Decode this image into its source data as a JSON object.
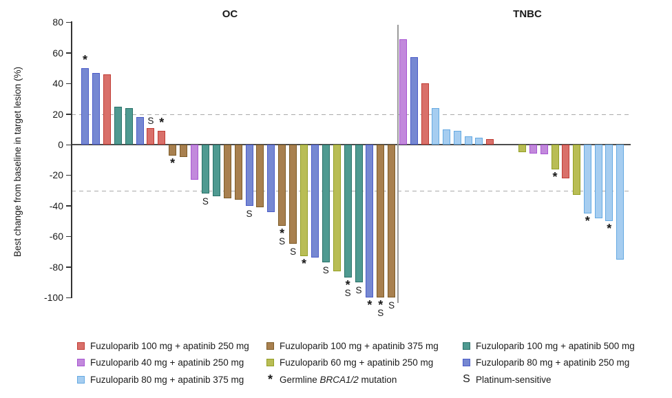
{
  "chart_data": {
    "type": "bar",
    "subtype": "waterfall",
    "ylabel": "Best change from baseline in target lesion (%)",
    "ylim": [
      -100,
      80
    ],
    "yticks": [
      80,
      60,
      40,
      20,
      0,
      -20,
      -40,
      -60,
      -80,
      -100
    ],
    "reference_lines_y": [
      20,
      -30
    ],
    "grid": "off",
    "series_colors": {
      "red": {
        "label": "Fuzuloparib 100 mg + apatinib 250 mg",
        "fill": "#D9706A",
        "stroke": "#C03C34"
      },
      "brown": {
        "label": "Fuzuloparib 100 mg + apatinib 375 mg",
        "fill": "#A8804F",
        "stroke": "#7D5B27"
      },
      "teal": {
        "label": "Fuzuloparib 100 mg + apatinib 500 mg",
        "fill": "#4F9A91",
        "stroke": "#2A7168"
      },
      "orchid": {
        "label": "Fuzuloparib 40 mg + apatinib 250 mg",
        "fill": "#C289DC",
        "stroke": "#A755D2"
      },
      "olive": {
        "label": "Fuzuloparib 60 mg + apatinib 250 mg",
        "fill": "#B9BD55",
        "stroke": "#939F25"
      },
      "slate": {
        "label": "Fuzuloparib 80 mg + apatinib 250 mg",
        "fill": "#7688D2",
        "stroke": "#4A5BC8"
      },
      "sky": {
        "label": "Fuzuloparib 80 mg + apatinib 375 mg",
        "fill": "#A6CDF0",
        "stroke": "#64A9E2"
      }
    },
    "flags_legend": {
      "asterisk": {
        "symbol": "*",
        "label_prefix": "Germline ",
        "label_italic": "BRCA1/2",
        "label_suffix": " mutation"
      },
      "s": {
        "symbol": "S",
        "label": "Platinum-sensitive"
      }
    },
    "panels": [
      {
        "title": "OC",
        "slots": 29,
        "bars": [
          {
            "slot": 0,
            "value": 50,
            "series": "slate",
            "flag": "*"
          },
          {
            "slot": 1,
            "value": 47,
            "series": "slate",
            "flag": ""
          },
          {
            "slot": 2,
            "value": 46,
            "series": "red",
            "flag": ""
          },
          {
            "slot": 3,
            "value": 25,
            "series": "teal",
            "flag": ""
          },
          {
            "slot": 4,
            "value": 24,
            "series": "teal",
            "flag": ""
          },
          {
            "slot": 5,
            "value": 18,
            "series": "slate",
            "flag": ""
          },
          {
            "slot": 6,
            "value": 11,
            "series": "red",
            "flag": "S"
          },
          {
            "slot": 7,
            "value": 9,
            "series": "red",
            "flag": "*"
          },
          {
            "slot": 8,
            "value": -7,
            "series": "brown",
            "flag": "*"
          },
          {
            "slot": 9,
            "value": -8,
            "series": "brown",
            "flag": ""
          },
          {
            "slot": 10,
            "value": -23,
            "series": "orchid",
            "flag": ""
          },
          {
            "slot": 11,
            "value": -32,
            "series": "teal",
            "flag": "S"
          },
          {
            "slot": 12,
            "value": -34,
            "series": "teal",
            "flag": ""
          },
          {
            "slot": 13,
            "value": -35,
            "series": "brown",
            "flag": ""
          },
          {
            "slot": 14,
            "value": -36,
            "series": "brown",
            "flag": ""
          },
          {
            "slot": 15,
            "value": -40,
            "series": "slate",
            "flag": "S"
          },
          {
            "slot": 16,
            "value": -41,
            "series": "brown",
            "flag": ""
          },
          {
            "slot": 17,
            "value": -44,
            "series": "slate",
            "flag": ""
          },
          {
            "slot": 18,
            "value": -53,
            "series": "brown",
            "flag": "*S"
          },
          {
            "slot": 19,
            "value": -65,
            "series": "brown",
            "flag": "S"
          },
          {
            "slot": 20,
            "value": -73,
            "series": "olive",
            "flag": "*"
          },
          {
            "slot": 21,
            "value": -74,
            "series": "slate",
            "flag": ""
          },
          {
            "slot": 22,
            "value": -77,
            "series": "teal",
            "flag": "S"
          },
          {
            "slot": 23,
            "value": -83,
            "series": "olive",
            "flag": ""
          },
          {
            "slot": 24,
            "value": -87,
            "series": "teal",
            "flag": "*S"
          },
          {
            "slot": 25,
            "value": -90,
            "series": "teal",
            "flag": "S"
          },
          {
            "slot": 26,
            "value": -100,
            "series": "slate",
            "flag": "*"
          },
          {
            "slot": 27,
            "value": -100,
            "series": "brown",
            "flag": "*S"
          },
          {
            "slot": 28,
            "value": -100,
            "series": "brown",
            "flag": "S"
          }
        ]
      },
      {
        "title": "TNBC",
        "slots": 21,
        "bars": [
          {
            "slot": 0,
            "value": 69,
            "series": "orchid",
            "flag": ""
          },
          {
            "slot": 1,
            "value": 57,
            "series": "slate",
            "flag": ""
          },
          {
            "slot": 2,
            "value": 40,
            "series": "red",
            "flag": ""
          },
          {
            "slot": 3,
            "value": 24,
            "series": "sky",
            "flag": ""
          },
          {
            "slot": 4,
            "value": 10,
            "series": "sky",
            "flag": ""
          },
          {
            "slot": 5,
            "value": 9,
            "series": "sky",
            "flag": ""
          },
          {
            "slot": 6,
            "value": 5.5,
            "series": "sky",
            "flag": ""
          },
          {
            "slot": 7,
            "value": 4.5,
            "series": "sky",
            "flag": ""
          },
          {
            "slot": 8,
            "value": 3.5,
            "series": "red",
            "flag": ""
          },
          {
            "slot": 11,
            "value": -5,
            "series": "olive",
            "flag": ""
          },
          {
            "slot": 12,
            "value": -6,
            "series": "orchid",
            "flag": ""
          },
          {
            "slot": 13,
            "value": -6.5,
            "series": "orchid",
            "flag": ""
          },
          {
            "slot": 14,
            "value": -16,
            "series": "olive",
            "flag": "*"
          },
          {
            "slot": 15,
            "value": -22,
            "series": "red",
            "flag": ""
          },
          {
            "slot": 16,
            "value": -33,
            "series": "olive",
            "flag": ""
          },
          {
            "slot": 17,
            "value": -45,
            "series": "sky",
            "flag": "*"
          },
          {
            "slot": 18,
            "value": -48,
            "series": "sky",
            "flag": ""
          },
          {
            "slot": 19,
            "value": -50,
            "series": "sky",
            "flag": "*"
          },
          {
            "slot": 20,
            "value": -75,
            "series": "sky",
            "flag": ""
          }
        ]
      }
    ]
  },
  "legend": {
    "columns": [
      [
        "red",
        "orchid",
        "sky"
      ],
      [
        "brown",
        "olive",
        "flag-asterisk"
      ],
      [
        "teal",
        "slate",
        "flag-s"
      ]
    ]
  }
}
